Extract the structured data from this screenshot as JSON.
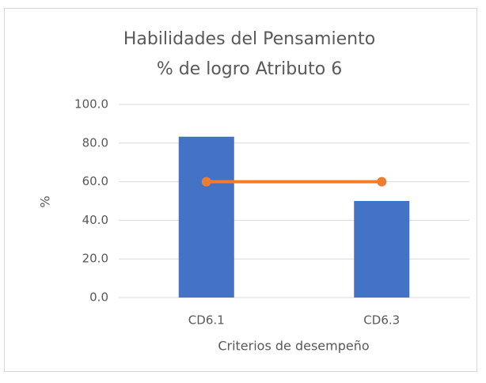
{
  "chart_data": {
    "type": "bar",
    "title": [
      "Habilidades del Pensamiento",
      "% de logro Atributo 6"
    ],
    "x_label": "Criterios de desempeño",
    "y_label": "%",
    "categories": [
      "CD6.1",
      "CD6.3"
    ],
    "series": [
      {
        "type": "bar",
        "color": "#4472c4",
        "values": [
          83.3,
          50
        ]
      },
      {
        "type": "line",
        "color": "#ed7d31",
        "values": [
          60,
          60
        ]
      }
    ],
    "ylim": [
      0,
      100
    ],
    "yticks": [
      {
        "value": 0,
        "label": "0.0"
      },
      {
        "value": 20,
        "label": "20.0"
      },
      {
        "value": 40,
        "label": "40.0"
      },
      {
        "value": 60,
        "label": "60.0"
      },
      {
        "value": 80,
        "label": "80.0"
      },
      {
        "value": 100,
        "label": "100.0"
      }
    ],
    "grid": true
  }
}
